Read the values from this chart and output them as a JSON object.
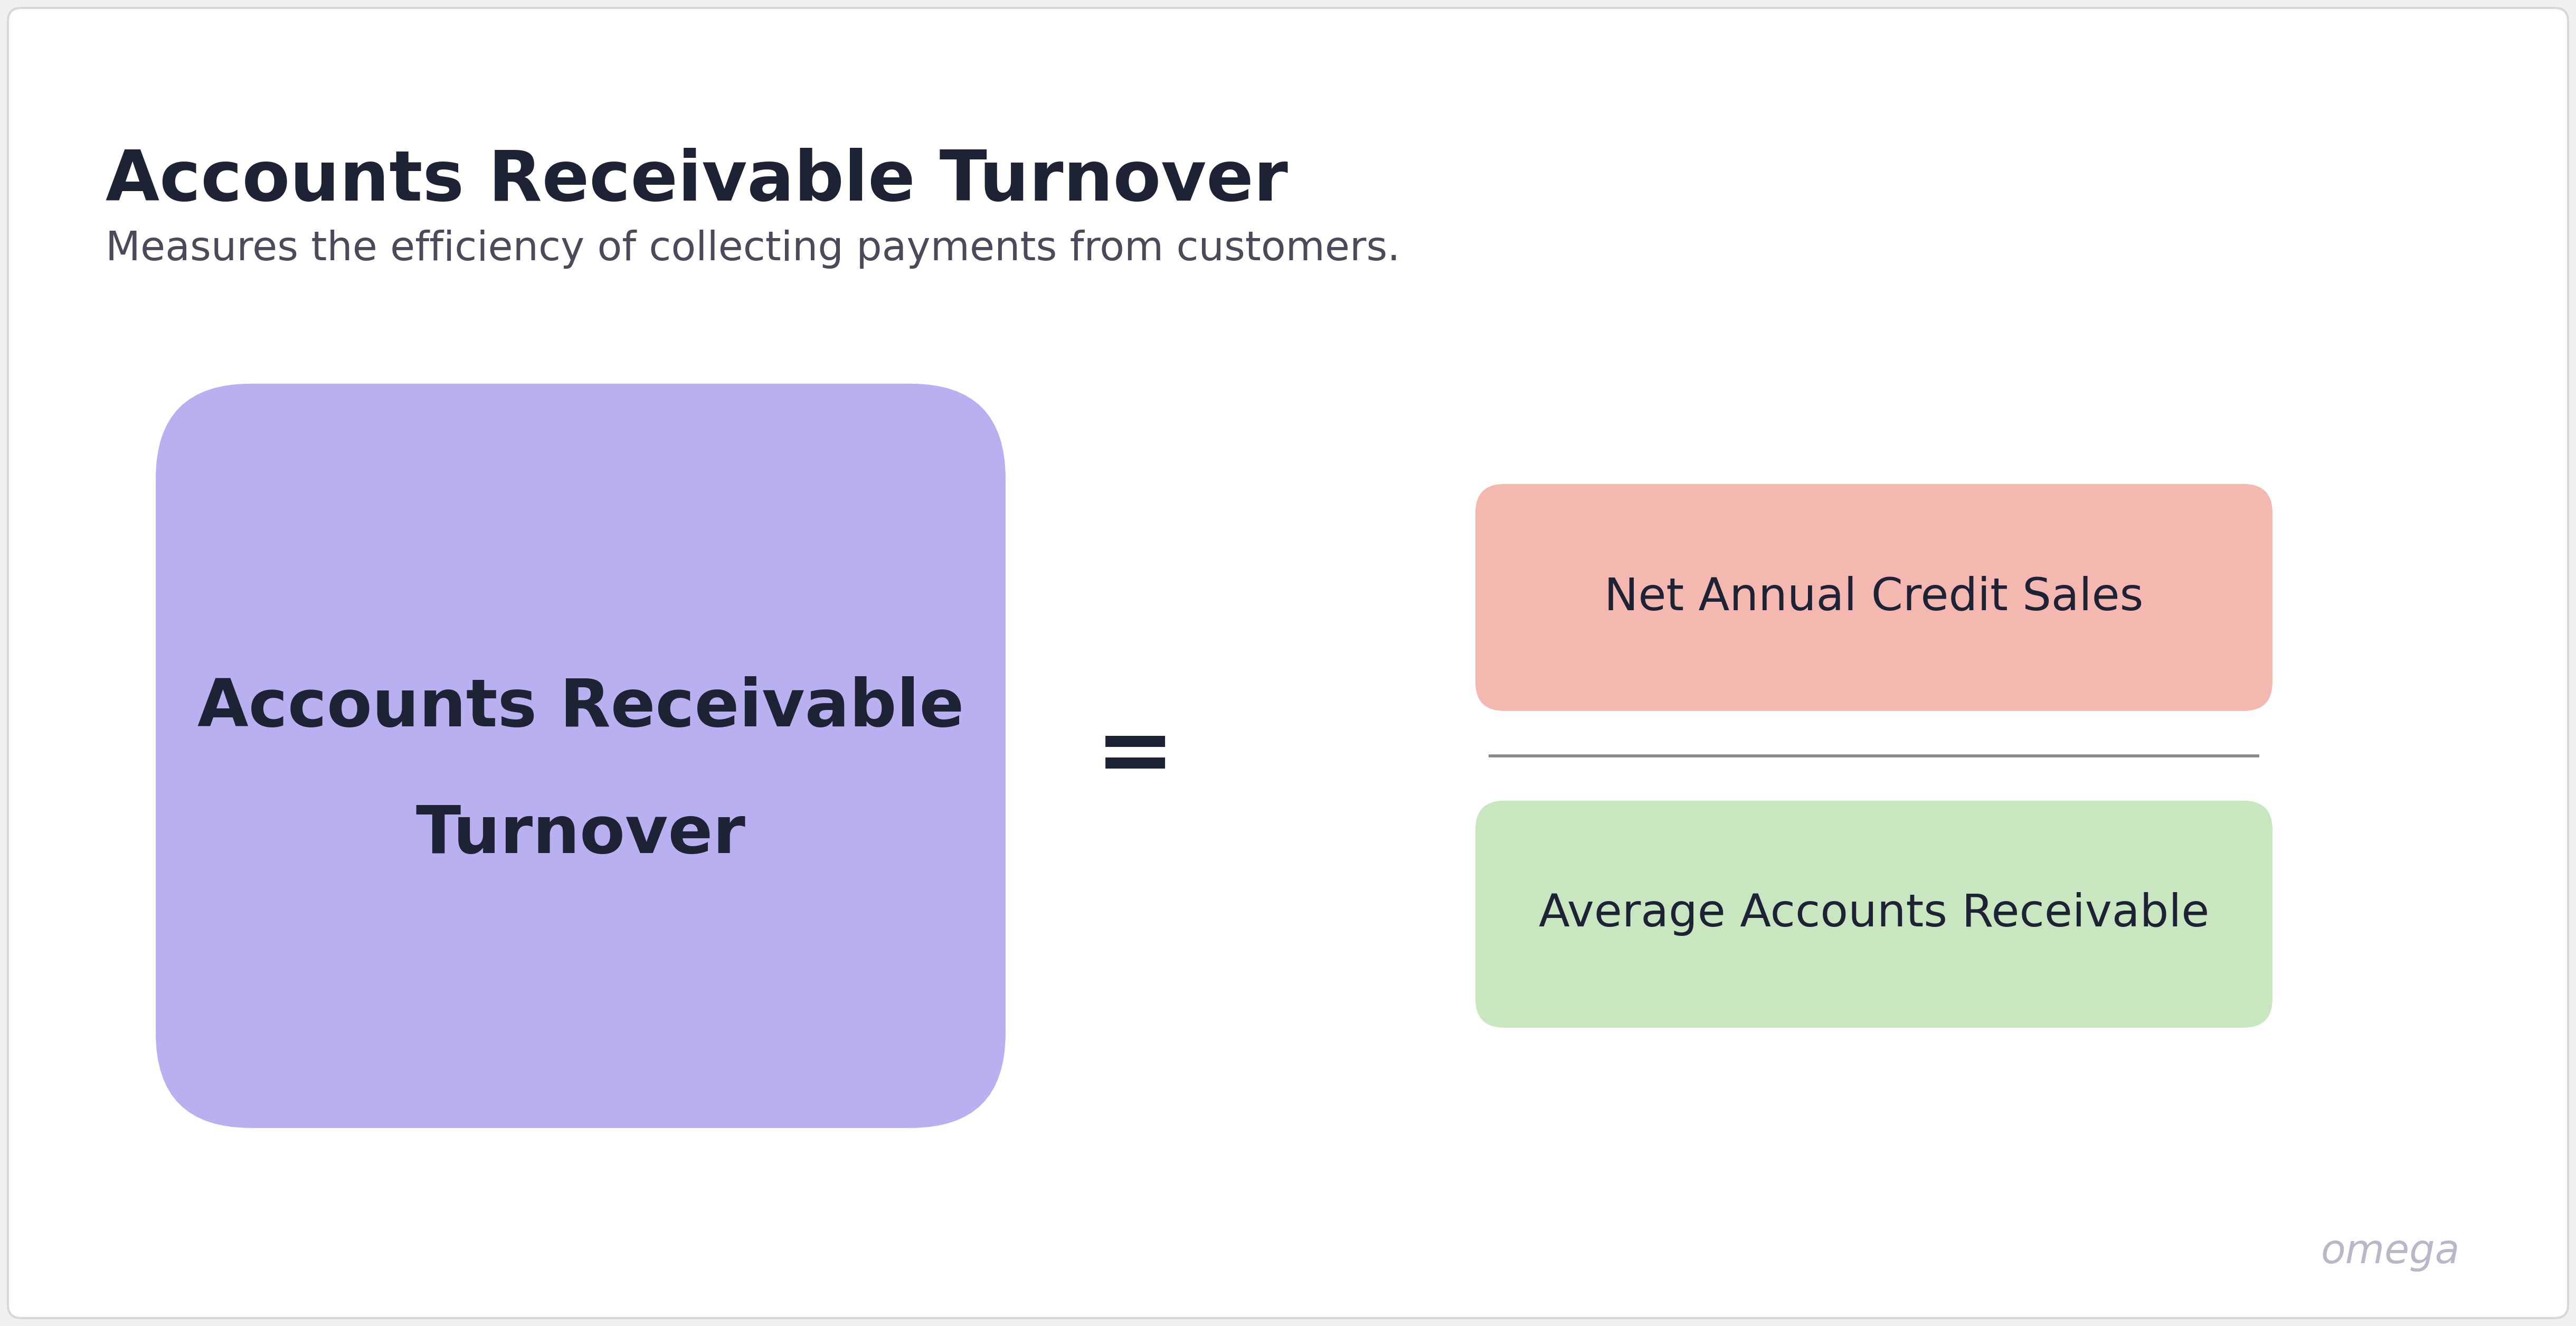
{
  "bg_color": "#f0f0f0",
  "card_bg": "#ffffff",
  "title": "Accounts Receivable Turnover",
  "subtitle": "Measures the efficiency of collecting payments from customers.",
  "title_color": "#1e2235",
  "subtitle_color": "#4a4a5a",
  "left_box_text_line1": "Accounts Receivable",
  "left_box_text_line2": "Turnover",
  "left_box_color": "#b8b0f0",
  "left_box_text_color": "#1e2235",
  "equals_sign": "=",
  "equals_color": "#1e2235",
  "numerator_text": "Net Annual Credit Sales",
  "numerator_bg": "#f5b8b0",
  "numerator_text_color": "#1e2235",
  "denominator_text": "Average Accounts Receivable",
  "denominator_bg": "#c8e6c0",
  "denominator_text_color": "#1e2235",
  "divider_color": "#888888",
  "watermark_text": "omega",
  "watermark_color": "#b8b8c8",
  "card_edge_color": "#d8d8d8"
}
